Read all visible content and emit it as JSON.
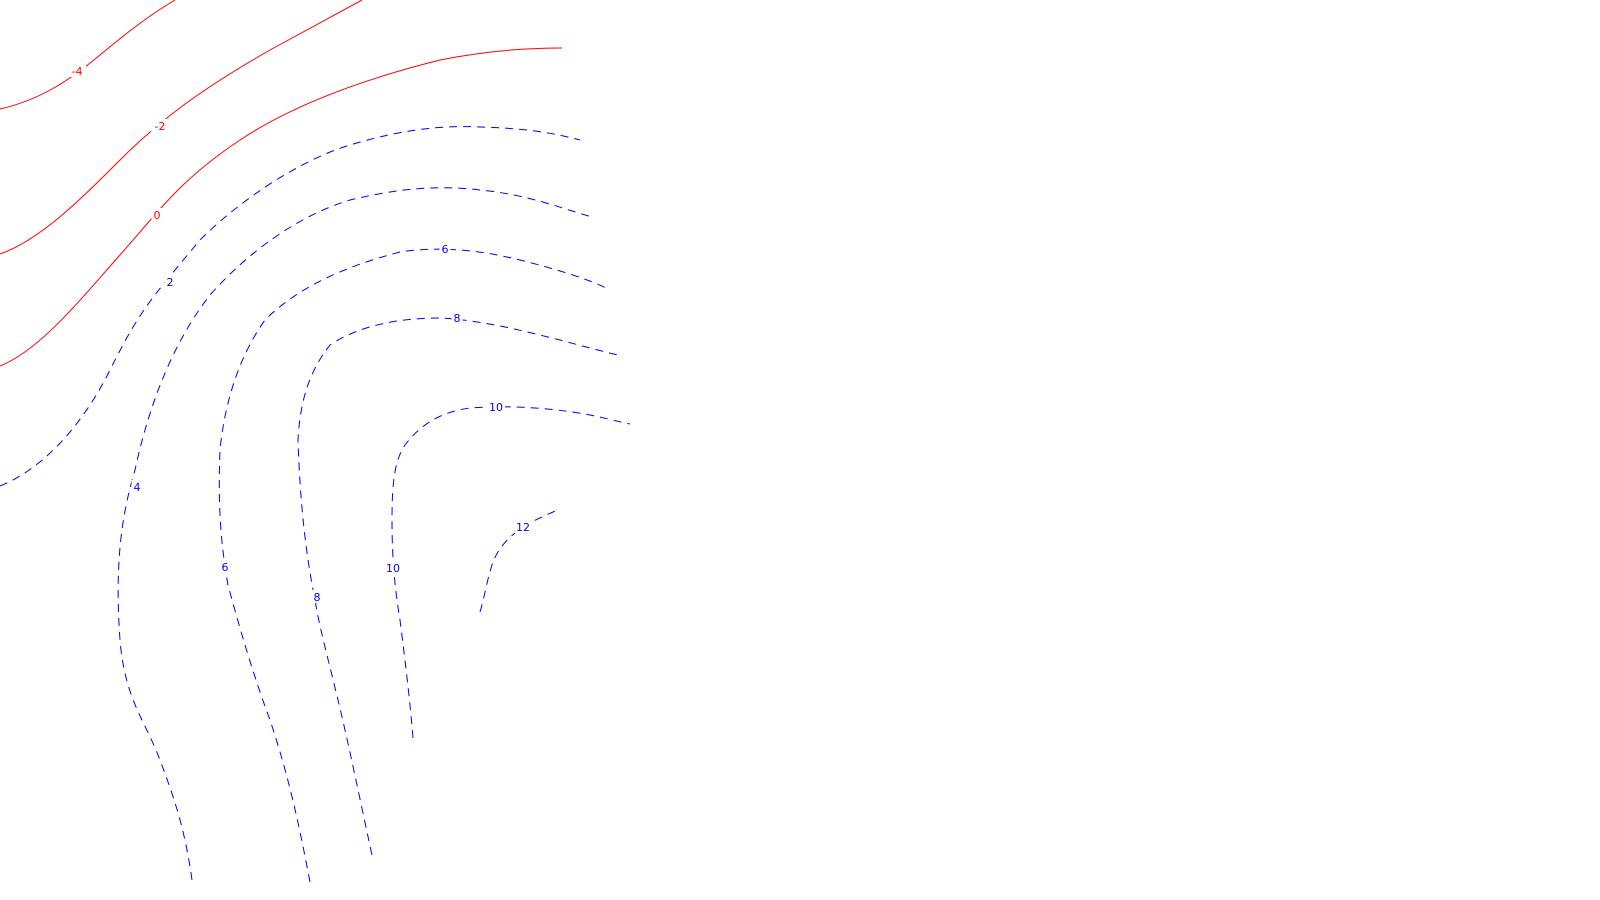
{
  "chart_data": {
    "type": "contour",
    "title": "",
    "xlabel": "",
    "ylabel": "",
    "grid": false,
    "legend": "none",
    "colors": {
      "negative": "#ff0000",
      "positive": "#0000ff",
      "background": "#ffffff"
    },
    "line_styles": {
      "negative": "solid",
      "positive": "dashed"
    },
    "levels": [
      {
        "value": -4,
        "labels": [
          "-4"
        ]
      },
      {
        "value": -2,
        "labels": [
          "-2"
        ]
      },
      {
        "value": 0,
        "labels": [
          "0"
        ]
      },
      {
        "value": 2,
        "labels": [
          "2"
        ]
      },
      {
        "value": 4,
        "labels": [
          "4"
        ]
      },
      {
        "value": 6,
        "labels": [
          "6",
          "6"
        ]
      },
      {
        "value": 8,
        "labels": [
          "8",
          "8"
        ]
      },
      {
        "value": 10,
        "labels": [
          "10",
          "10"
        ]
      },
      {
        "value": 12,
        "labels": [
          "12"
        ]
      }
    ]
  }
}
